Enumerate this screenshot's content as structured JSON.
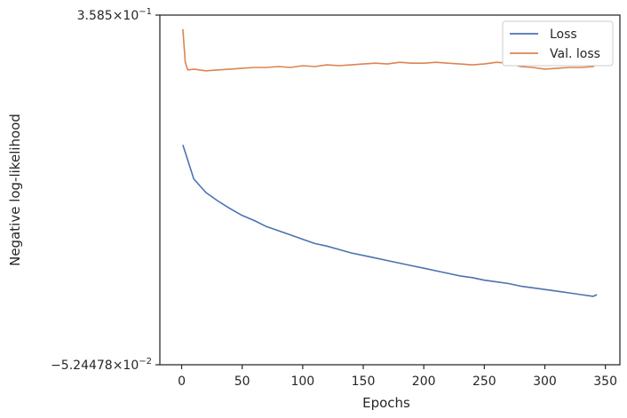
{
  "chart_data": {
    "type": "line",
    "title": "",
    "xlabel": "Epochs",
    "ylabel": "Negative log-likelihood",
    "xlim": [
      -18,
      362
    ],
    "ylim": [
      -0.0524478,
      0.3585
    ],
    "x_ticks": [
      0,
      50,
      100,
      150,
      200,
      250,
      300,
      350
    ],
    "y_ticks": [
      {
        "value": 0.3585,
        "mantissa": "3.585",
        "exponent": "−1"
      },
      {
        "value": -0.0524478,
        "mantissa": "−5.24478",
        "exponent": "−2"
      }
    ],
    "legend_position": "top-right",
    "grid": false,
    "series": [
      {
        "name": "Loss",
        "color": "#4c72b0",
        "x": [
          1,
          10,
          20,
          30,
          40,
          50,
          60,
          70,
          80,
          90,
          100,
          110,
          120,
          130,
          140,
          150,
          160,
          170,
          180,
          190,
          200,
          210,
          220,
          230,
          240,
          250,
          260,
          270,
          280,
          290,
          300,
          310,
          320,
          330,
          340,
          343
        ],
        "y": [
          0.206,
          0.166,
          0.15,
          0.14,
          0.131,
          0.123,
          0.117,
          0.11,
          0.105,
          0.1,
          0.095,
          0.09,
          0.087,
          0.083,
          0.079,
          0.076,
          0.073,
          0.07,
          0.067,
          0.064,
          0.061,
          0.058,
          0.055,
          0.052,
          0.05,
          0.047,
          0.045,
          0.043,
          0.04,
          0.038,
          0.036,
          0.034,
          0.032,
          0.03,
          0.028,
          0.03
        ]
      },
      {
        "name": "Val. loss",
        "color": "#dd8452",
        "x": [
          1,
          3,
          5,
          10,
          20,
          30,
          40,
          50,
          60,
          70,
          80,
          90,
          100,
          110,
          120,
          130,
          140,
          150,
          160,
          170,
          180,
          190,
          200,
          210,
          220,
          230,
          240,
          250,
          260,
          270,
          280,
          290,
          300,
          310,
          320,
          330,
          340,
          343
        ],
        "y": [
          0.342,
          0.303,
          0.294,
          0.295,
          0.293,
          0.294,
          0.295,
          0.296,
          0.297,
          0.297,
          0.298,
          0.297,
          0.299,
          0.298,
          0.3,
          0.299,
          0.3,
          0.301,
          0.302,
          0.301,
          0.303,
          0.302,
          0.302,
          0.303,
          0.302,
          0.301,
          0.3,
          0.301,
          0.303,
          0.302,
          0.298,
          0.297,
          0.295,
          0.296,
          0.297,
          0.297,
          0.298,
          0.302
        ]
      }
    ]
  }
}
